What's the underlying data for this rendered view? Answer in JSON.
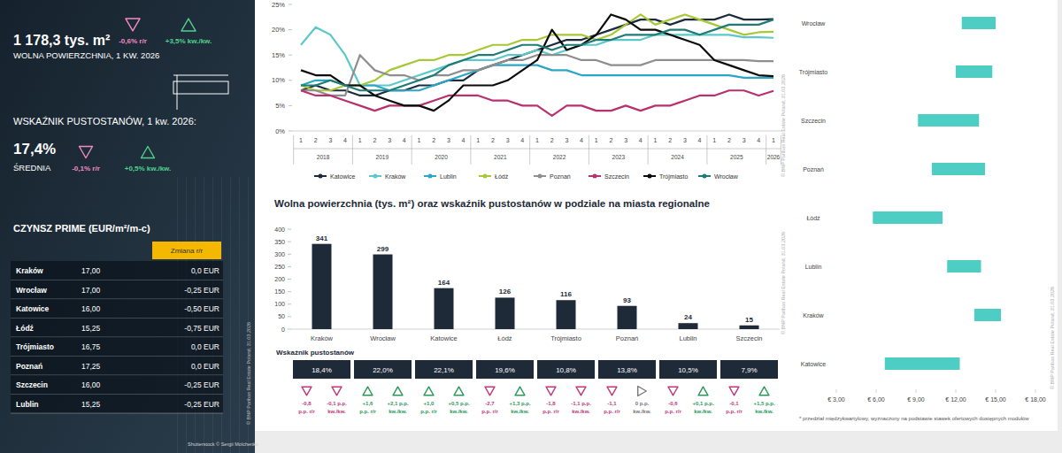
{
  "summary": {
    "vacant_space": {
      "value_label": "1 178,3 tys. m²",
      "label": "WOLNA POWIERZCHNIA, 1 KW. 2026",
      "changes": [
        {
          "value": -0.6,
          "label": "-0,6% r/r"
        },
        {
          "value": 3.5,
          "label": "+3,5% kw./kw."
        }
      ]
    },
    "vacancy_rate": {
      "title": "WSKAŹNIK PUSTOSTANÓW, 1 kw. 2026:",
      "value_label": "17,4%",
      "label": "ŚREDNIA",
      "changes": [
        {
          "value": -0.1,
          "label": "-0,1% r/r"
        },
        {
          "value": 0.5,
          "label": "+0,5% kw./kw."
        }
      ]
    }
  },
  "rent_table": {
    "title": "CZYNSZ PRIME (EUR/m²/m-c)",
    "header": "Zmiana r/r",
    "rows": [
      [
        "Kraków",
        "17,00",
        "0,0 EUR"
      ],
      [
        "Wrocław",
        "17,00",
        "-0,25 EUR"
      ],
      [
        "Katowice",
        "16,00",
        "-0,50 EUR"
      ],
      [
        "Łódź",
        "15,25",
        "-0,75 EUR"
      ],
      [
        "Trójmiasto",
        "16,75",
        "0,0 EUR"
      ],
      [
        "Poznań",
        "17,25",
        "0,0 EUR"
      ],
      [
        "Szczecin",
        "16,00",
        "-0,25 EUR"
      ],
      [
        "Lublin",
        "15,25",
        "-0,25 EUR"
      ]
    ]
  },
  "image_credit": "Shutterstock © Sergii Molchenko",
  "source": "© BNP Paribas Real Estate Poland, 31.03.2026",
  "chart_data": [
    {
      "type": "line",
      "categories": [
        "1",
        "2",
        "3",
        "4",
        "1",
        "2",
        "3",
        "4",
        "1",
        "2",
        "3",
        "4",
        "1",
        "2",
        "3",
        "4",
        "1",
        "2",
        "3",
        "4",
        "1",
        "2",
        "3",
        "4",
        "1",
        "2",
        "3",
        "4",
        "1",
        "2",
        "3",
        "4",
        "1"
      ],
      "category_groups": [
        "2018",
        "2019",
        "2020",
        "2021",
        "2022",
        "2023",
        "2024",
        "2025",
        "2026"
      ],
      "ylim": [
        0,
        25
      ],
      "yticks": [
        {
          "value": 0,
          "label": "0%"
        },
        {
          "value": 5,
          "label": "5%"
        },
        {
          "value": 10,
          "label": "10%"
        },
        {
          "value": 15,
          "label": "15%"
        },
        {
          "value": 20,
          "label": "20%"
        },
        {
          "value": 25,
          "label": "25%"
        }
      ],
      "grid": false,
      "legend": "bottom",
      "series": [
        {
          "name": "Katowice",
          "color": "#1c2b3c",
          "values": [
            8,
            9,
            8,
            8,
            7,
            7,
            8,
            8,
            9,
            9,
            10,
            10,
            12,
            13,
            14,
            15,
            16,
            17,
            18,
            18,
            19,
            20,
            21,
            22,
            22,
            21,
            22,
            22,
            22,
            23,
            22,
            22,
            22.1
          ]
        },
        {
          "name": "Kraków",
          "color": "#5cc8cc",
          "values": [
            17,
            20.5,
            19,
            15,
            9,
            9,
            9,
            10,
            11,
            12,
            13,
            14,
            14,
            14,
            15,
            15,
            16,
            15,
            16,
            17,
            17,
            18,
            18,
            18,
            19,
            19,
            19,
            19,
            19,
            19,
            18.5,
            18.5,
            18.4
          ]
        },
        {
          "name": "Lublin",
          "color": "#2aa6c6",
          "values": [
            9,
            10,
            10,
            9,
            9,
            9,
            8,
            8,
            8,
            9,
            10,
            11,
            12,
            13,
            13,
            13,
            13,
            12,
            12,
            11,
            11,
            11,
            11,
            11,
            11,
            11,
            11,
            11,
            11,
            11,
            10.5,
            10.5,
            10.5
          ]
        },
        {
          "name": "Łódź",
          "color": "#a6c834",
          "values": [
            9,
            8,
            8,
            9,
            9,
            10,
            12,
            13,
            14,
            14,
            15,
            15,
            16,
            17,
            17,
            18,
            18,
            19,
            19,
            19,
            18,
            19,
            21,
            23,
            21,
            22,
            23,
            22,
            21,
            20,
            19,
            19.5,
            19.6
          ]
        },
        {
          "name": "Poznań",
          "color": "#8e8e8e",
          "values": [
            8,
            8,
            7,
            7,
            15,
            12,
            11,
            11,
            10,
            11,
            11,
            12,
            12,
            13,
            14,
            14,
            15,
            15,
            15,
            14,
            14,
            13,
            13,
            13,
            14,
            14,
            14,
            14,
            14,
            14,
            14,
            13.8,
            13.8
          ]
        },
        {
          "name": "Szczecin",
          "color": "#b8306e",
          "values": [
            8,
            7,
            7,
            6,
            5,
            4,
            5,
            5,
            5,
            6,
            7,
            7,
            7,
            6,
            6,
            5,
            5,
            3,
            5,
            5,
            4,
            4,
            5,
            4,
            5,
            5,
            6,
            7,
            7,
            8,
            8,
            7,
            7.9
          ]
        },
        {
          "name": "Trójmiasto",
          "color": "#0b0b0b",
          "values": [
            12,
            11,
            11,
            9,
            9,
            7,
            6,
            5,
            5,
            4,
            6,
            9,
            9,
            9,
            10,
            12,
            14,
            20,
            16,
            17,
            19,
            23,
            22,
            20,
            20,
            19,
            18,
            17,
            14,
            13,
            12,
            11,
            10.8
          ]
        },
        {
          "name": "Wrocław",
          "color": "#1f7b76",
          "values": [
            9,
            9,
            10,
            9,
            8,
            8,
            8,
            9,
            10,
            11,
            13,
            14,
            15,
            15,
            16,
            17,
            17,
            16,
            17,
            17,
            18,
            18,
            19,
            19,
            19,
            20,
            20,
            19,
            20,
            21,
            21,
            21,
            22.0
          ]
        }
      ]
    },
    {
      "type": "bar",
      "title": "Wolna powierzchnia (tys. m²) oraz wskaźnik pustostanów w podziale na miasta regionalne",
      "categories": [
        "Kraków",
        "Wrocław",
        "Katowice",
        "Łódź",
        "Trójmiasto",
        "Poznań",
        "Lublin",
        "Szczecin"
      ],
      "values": [
        341,
        299,
        164,
        126,
        116,
        93,
        24,
        15
      ],
      "color": "#1e2a38",
      "ylim": [
        0,
        400
      ],
      "yticks": [
        0,
        50,
        100,
        150,
        200,
        250,
        300,
        350,
        400
      ],
      "grid": false,
      "data_labels": true,
      "vacancy": {
        "title": "Wskaźnik pustostanów",
        "values": [
          18.4,
          22.0,
          22.1,
          19.6,
          10.8,
          13.8,
          10.5,
          7.9
        ],
        "value_labels": [
          "18,4%",
          "22,0%",
          "22,1%",
          "19,6%",
          "10,8%",
          "13,8%",
          "10,5%",
          "7,9%"
        ]
      },
      "vacancy_changes": [
        [
          {
            "value": -0.8,
            "lines": [
              "-0,8",
              "p.p. r/r"
            ]
          },
          {
            "value": -0.1,
            "lines": [
              "-0,1 p.p.",
              "kw./kw."
            ]
          }
        ],
        [
          {
            "value": 1.6,
            "lines": [
              "+1,6",
              "p.p. r/r"
            ]
          },
          {
            "value": 2.1,
            "lines": [
              "+2,1 p.p.",
              "kw./kw."
            ]
          }
        ],
        [
          {
            "value": 1.0,
            "lines": [
              "+1,0",
              "p.p. r/r"
            ]
          },
          {
            "value": 0.5,
            "lines": [
              "+0,5 p.p.",
              "kw./kw."
            ]
          }
        ],
        [
          {
            "value": -2.7,
            "lines": [
              "-2,7",
              "p.p. r/r"
            ]
          },
          {
            "value": 1.3,
            "lines": [
              "+1,3 p.p.",
              "kw./kw."
            ]
          }
        ],
        [
          {
            "value": -1.8,
            "lines": [
              "-1,8",
              "p.p. r/r"
            ]
          },
          {
            "value": -1.1,
            "lines": [
              "-1,1 p.p.",
              "kw./kw."
            ]
          }
        ],
        [
          {
            "value": -1.1,
            "lines": [
              "-1,1",
              "p.p. r/r"
            ]
          },
          {
            "value": 0,
            "lines": [
              "0 p.p.",
              "kw./kw."
            ]
          }
        ],
        [
          {
            "value": -0.6,
            "lines": [
              "-0,6",
              "p.p. r/r"
            ]
          },
          {
            "value": 0.1,
            "lines": [
              "+0,1 p.p.",
              "kw./kw."
            ]
          }
        ],
        [
          {
            "value": -0.1,
            "lines": [
              "-0,1",
              "p.p. r/r"
            ]
          },
          {
            "value": 1.5,
            "lines": [
              "+1,5 p.p.",
              "kw./kw."
            ]
          }
        ]
      ]
    },
    {
      "type": "range",
      "orientation": "horizontal",
      "categories": [
        "Wrocław",
        "Trójmiasto",
        "Szczecin",
        "Poznań",
        "Łódź",
        "Lublin",
        "Kraków",
        "Katowice"
      ],
      "values": [
        [
          12.45,
          15.0
        ],
        [
          12.0,
          14.75
        ],
        [
          9.15,
          13.75
        ],
        [
          10.2,
          14.2
        ],
        [
          5.75,
          11.0
        ],
        [
          11.35,
          13.9
        ],
        [
          13.4,
          15.4
        ],
        [
          6.65,
          12.3
        ]
      ],
      "color": "#4ecdc4",
      "xlim": [
        3,
        18
      ],
      "xticks": [
        {
          "value": 3,
          "label": "€ 3,00"
        },
        {
          "value": 6,
          "label": "€ 6,00"
        },
        {
          "value": 9,
          "label": "€ 9,00"
        },
        {
          "value": 12,
          "label": "€ 12,00"
        },
        {
          "value": 15,
          "label": "€ 15,00"
        },
        {
          "value": 18,
          "label": "€ 18,00"
        }
      ],
      "grid": false,
      "note": "* przedział międzykwartylowy, wyznaczony na podstawie stawek ofertowych dostępnych modułów"
    }
  ]
}
